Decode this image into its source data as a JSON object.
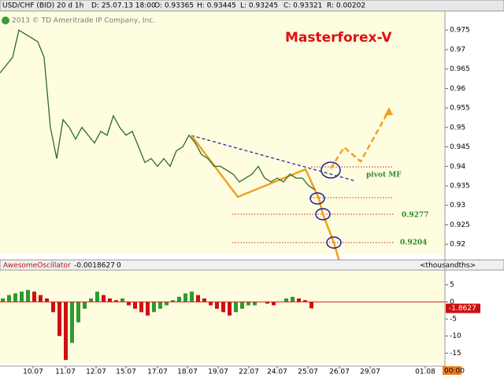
{
  "header": {
    "symbol": "USD/CHF (BID) 20 d 1h",
    "date": "D: 25.07.13 18:00",
    "open": "O: 0.93365",
    "high": "H: 0.93445",
    "low": "L: 0.93245",
    "close": "C: 0.93321",
    "range": "R: 0.00202",
    "copyright": "2013 © TD Ameritrade IP Company, Inc."
  },
  "chart_data": [
    {
      "type": "line",
      "title": "Masterforex-V",
      "color": "#2a6a2a",
      "values": [
        0.964,
        0.966,
        0.968,
        0.975,
        0.974,
        0.973,
        0.972,
        0.968,
        0.95,
        0.942,
        0.952,
        0.95,
        0.947,
        0.95,
        0.948,
        0.946,
        0.949,
        0.948,
        0.953,
        0.95,
        0.948,
        0.949,
        0.945,
        0.941,
        0.942,
        0.94,
        0.942,
        0.94,
        0.944,
        0.945,
        0.948,
        0.946,
        0.943,
        0.942,
        0.94,
        0.94,
        0.939,
        0.938,
        0.936,
        0.937,
        0.938,
        0.94,
        0.937,
        0.936,
        0.937,
        0.936,
        0.938,
        0.937,
        0.937,
        0.935,
        0.934
      ],
      "ylim": [
        0.9174,
        0.9799
      ],
      "yticks": [
        0.975,
        0.97,
        0.965,
        0.96,
        0.955,
        0.95,
        0.945,
        0.94,
        0.935,
        0.93,
        0.925,
        0.92
      ],
      "annotations": [
        "pivot MF",
        "0.9277",
        "0.9204"
      ]
    },
    {
      "type": "bar",
      "title": "AwesomeOscillator",
      "current": "-0.0018627",
      "param": "0",
      "unit": "<thousandths>",
      "marker": "-1.8627",
      "up_color": "#2e9a2e",
      "down_color": "#d01010",
      "values": [
        1,
        2,
        2.5,
        3,
        3.5,
        3,
        2,
        1,
        -3,
        -10,
        -17,
        -12,
        -6,
        -2,
        1,
        3,
        2,
        1,
        0.5,
        1,
        -1,
        -2,
        -3,
        -4,
        -3,
        -2,
        -1,
        0.5,
        1.5,
        2.5,
        3,
        2,
        1,
        -1,
        -2,
        -3,
        -4,
        -3,
        -2,
        -1,
        -1,
        0,
        -0.5,
        -1,
        0,
        1,
        1.5,
        1,
        0.5,
        -1.9
      ],
      "ylim": [
        -17.9,
        9.3
      ],
      "yticks": [
        5,
        0,
        -5,
        -10,
        -15
      ]
    }
  ],
  "x_axis": {
    "categories": [
      "10.07",
      "11.07",
      "12.07",
      "15.07",
      "17.07",
      "18.07",
      "19.07",
      "22.07",
      "24.07",
      "25.07",
      "26.07",
      "29.07",
      "01.08"
    ],
    "time": "00:00"
  }
}
